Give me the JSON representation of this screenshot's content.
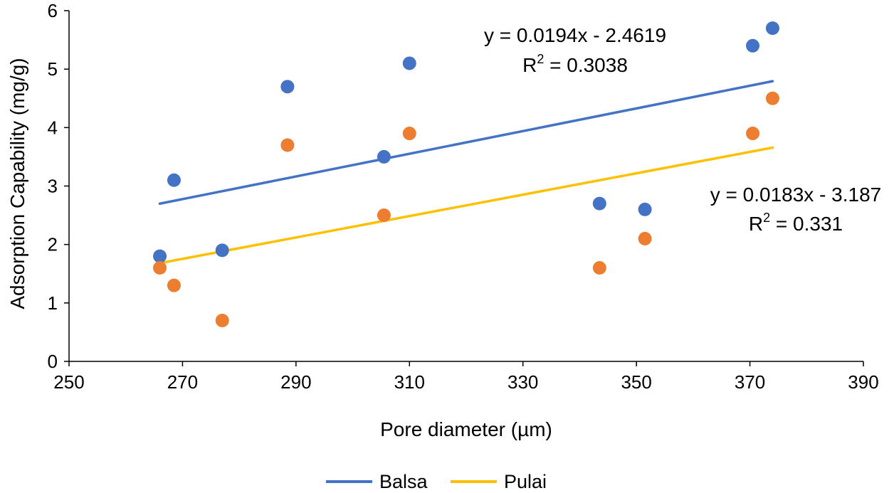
{
  "chart_data": {
    "type": "scatter",
    "title": "",
    "xlabel": "Pore diameter  (µm)",
    "ylabel": "Adsorption Capability (mg/g)",
    "xlim": [
      250,
      390
    ],
    "ylim": [
      0,
      6
    ],
    "x_ticks": [
      250,
      270,
      290,
      310,
      330,
      350,
      370,
      390
    ],
    "y_ticks": [
      0,
      1,
      2,
      3,
      4,
      5,
      6
    ],
    "x_tick_labels": [
      "250",
      "270",
      "290",
      "310",
      "330",
      "350",
      "370",
      "390"
    ],
    "y_tick_labels": [
      "0",
      "1",
      "2",
      "3",
      "4",
      "5",
      "6"
    ],
    "grid": false,
    "legend_position": "bottom-center",
    "series": [
      {
        "name": "Balsa",
        "marker_color": "#4472C4",
        "line_color": "#4472C4",
        "points": [
          {
            "x": 266,
            "y": 1.8
          },
          {
            "x": 268.5,
            "y": 3.1
          },
          {
            "x": 277,
            "y": 1.9
          },
          {
            "x": 288.5,
            "y": 4.7
          },
          {
            "x": 305.5,
            "y": 3.5
          },
          {
            "x": 310,
            "y": 5.1
          },
          {
            "x": 343.5,
            "y": 2.7
          },
          {
            "x": 351.5,
            "y": 2.6
          },
          {
            "x": 370.5,
            "y": 5.4
          },
          {
            "x": 374,
            "y": 5.7
          }
        ],
        "trendline": {
          "slope": 0.0194,
          "intercept": -2.4619,
          "x_range": [
            266,
            374
          ],
          "equation": "y = 0.0194x - 2.4619",
          "r2_prefix": "R",
          "r2_sup": "2",
          "r2_value": " = 0.3038"
        }
      },
      {
        "name": "Pulai",
        "marker_color": "#ED7D31",
        "line_color": "#FFC000",
        "points": [
          {
            "x": 266,
            "y": 1.6
          },
          {
            "x": 268.5,
            "y": 1.3
          },
          {
            "x": 277,
            "y": 0.7
          },
          {
            "x": 288.5,
            "y": 3.7
          },
          {
            "x": 305.5,
            "y": 2.5
          },
          {
            "x": 310,
            "y": 3.9
          },
          {
            "x": 343.5,
            "y": 1.6
          },
          {
            "x": 351.5,
            "y": 2.1
          },
          {
            "x": 370.5,
            "y": 3.9
          },
          {
            "x": 374,
            "y": 4.5
          }
        ],
        "trendline": {
          "slope": 0.0183,
          "intercept": -3.187,
          "x_range": [
            266,
            374
          ],
          "equation": "y = 0.0183x - 3.187",
          "r2_prefix": "R",
          "r2_sup": "2",
          "r2_value": " = 0.331"
        }
      }
    ]
  }
}
